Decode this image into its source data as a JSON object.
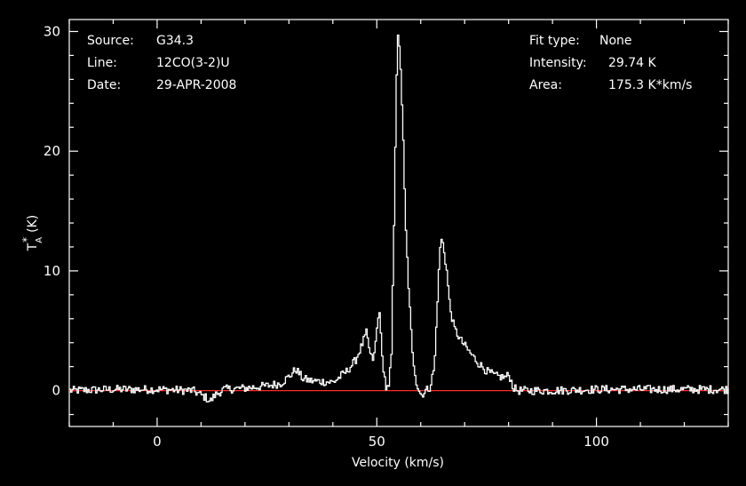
{
  "info_left": [
    {
      "label": "Source:",
      "value": "G34.3"
    },
    {
      "label": "Line:",
      "value": "12CO(3-2)U"
    },
    {
      "label": "Date:",
      "value": "29-APR-2008"
    }
  ],
  "info_right": [
    {
      "label": "Fit type:",
      "value": "None"
    },
    {
      "label": "Intensity:",
      "value": "29.74 K"
    },
    {
      "label": "Area:",
      "value": "175.3 K*km/s"
    }
  ],
  "chart_data": {
    "type": "line",
    "xlabel": "Velocity (km/s)",
    "ylabel": "T*A (K)",
    "ylabel_parts": {
      "base": "T",
      "sup": "*",
      "sub": "A",
      "unit": "(K)"
    },
    "xlim": [
      -20,
      130
    ],
    "ylim": [
      -3,
      31
    ],
    "x_ticks": [
      0,
      50,
      100
    ],
    "y_ticks": [
      0,
      10,
      20,
      30
    ],
    "grid": false,
    "colors": {
      "background": "#000000",
      "frame": "#ffffff",
      "line": "#ffffff",
      "baseline": "#ff2a2a"
    },
    "baseline_value": 0,
    "series": [
      {
        "x": [
          -20,
          -10,
          0,
          8,
          11,
          12,
          13,
          15,
          20,
          25,
          28,
          30,
          31.5,
          33,
          35,
          40,
          43,
          45,
          46.5,
          47.5,
          48.5,
          49.2,
          50,
          50.5,
          51,
          52,
          52.6,
          53.2,
          53.8,
          54.3,
          54.6,
          55.2,
          55.8,
          56.4,
          57.2,
          58,
          59,
          60,
          61,
          62,
          63,
          63.8,
          64.4,
          65,
          65.8,
          66.5,
          67.5,
          69,
          71,
          73,
          75,
          77,
          79,
          80,
          81,
          82,
          90,
          100,
          110,
          120,
          130
        ],
        "y": [
          0,
          0.1,
          0.1,
          0,
          -0.6,
          -0.9,
          -0.4,
          0.1,
          0.2,
          0.4,
          0.6,
          1.2,
          1.8,
          1.0,
          0.8,
          0.7,
          1.6,
          2.5,
          3.8,
          4.8,
          2.8,
          2.6,
          5.5,
          6.8,
          3.0,
          0.2,
          0.2,
          3.0,
          14,
          25,
          29.7,
          28,
          22,
          14,
          8,
          3,
          0.5,
          -0.4,
          0,
          0.3,
          2.0,
          8.5,
          12.7,
          12.2,
          10,
          7,
          5.2,
          4.2,
          3.2,
          2.3,
          1.6,
          1.2,
          1.1,
          1.3,
          0.2,
          0,
          0,
          0.1,
          0.1,
          0.1,
          0.1
        ]
      }
    ]
  }
}
